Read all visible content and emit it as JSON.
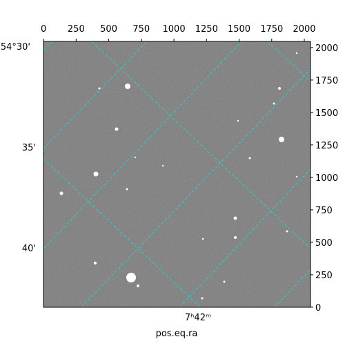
{
  "chart_data": {
    "type": "image",
    "xlabel": "pos.eq.ra",
    "xlim": [
      -0.5,
      2047.5
    ],
    "ylim": [
      -0.5,
      2047.5
    ],
    "xticks": [
      0,
      250,
      500,
      750,
      1000,
      1250,
      1500,
      1750,
      2000
    ],
    "yticks": [
      0,
      250,
      500,
      750,
      1000,
      1250,
      1500,
      1750,
      2000
    ],
    "world_y_labels": [
      "54°30'",
      "35'",
      "40'"
    ],
    "world_x_labels": [
      "7ʰ42ᵐ"
    ]
  }
}
